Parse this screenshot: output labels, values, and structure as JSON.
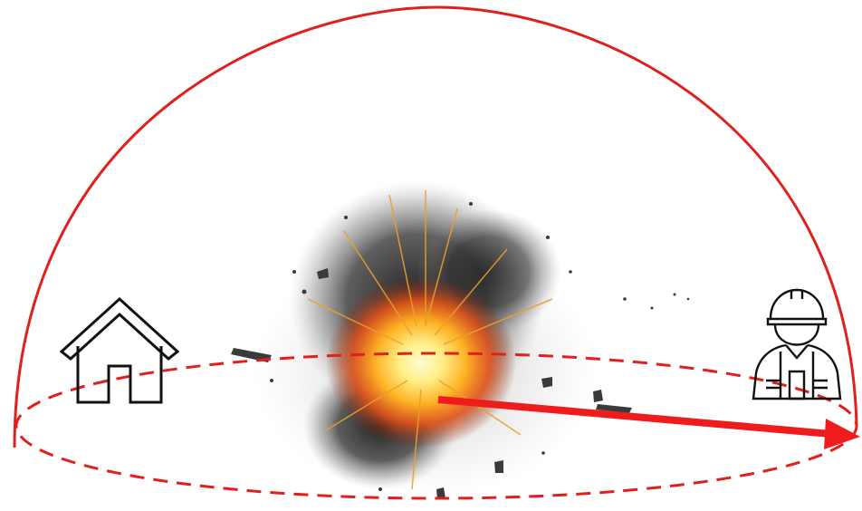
{
  "diagram": {
    "colors": {
      "boundary": "#e0201d",
      "radius_arrow": "#ee1c1c",
      "icon_stroke": "#111111",
      "smoke": "#2a2a2a",
      "fire_core": "#fff3a0",
      "fire_mid": "#ffb224",
      "fire_outer": "#e2521a"
    },
    "elements": {
      "dome": "hemisphere-boundary",
      "ground": "dashed-ellipse-ground",
      "center": "explosion",
      "left_icon": "house-icon",
      "right_icon": "worker-icon",
      "arrow": "radius-arrow"
    }
  }
}
